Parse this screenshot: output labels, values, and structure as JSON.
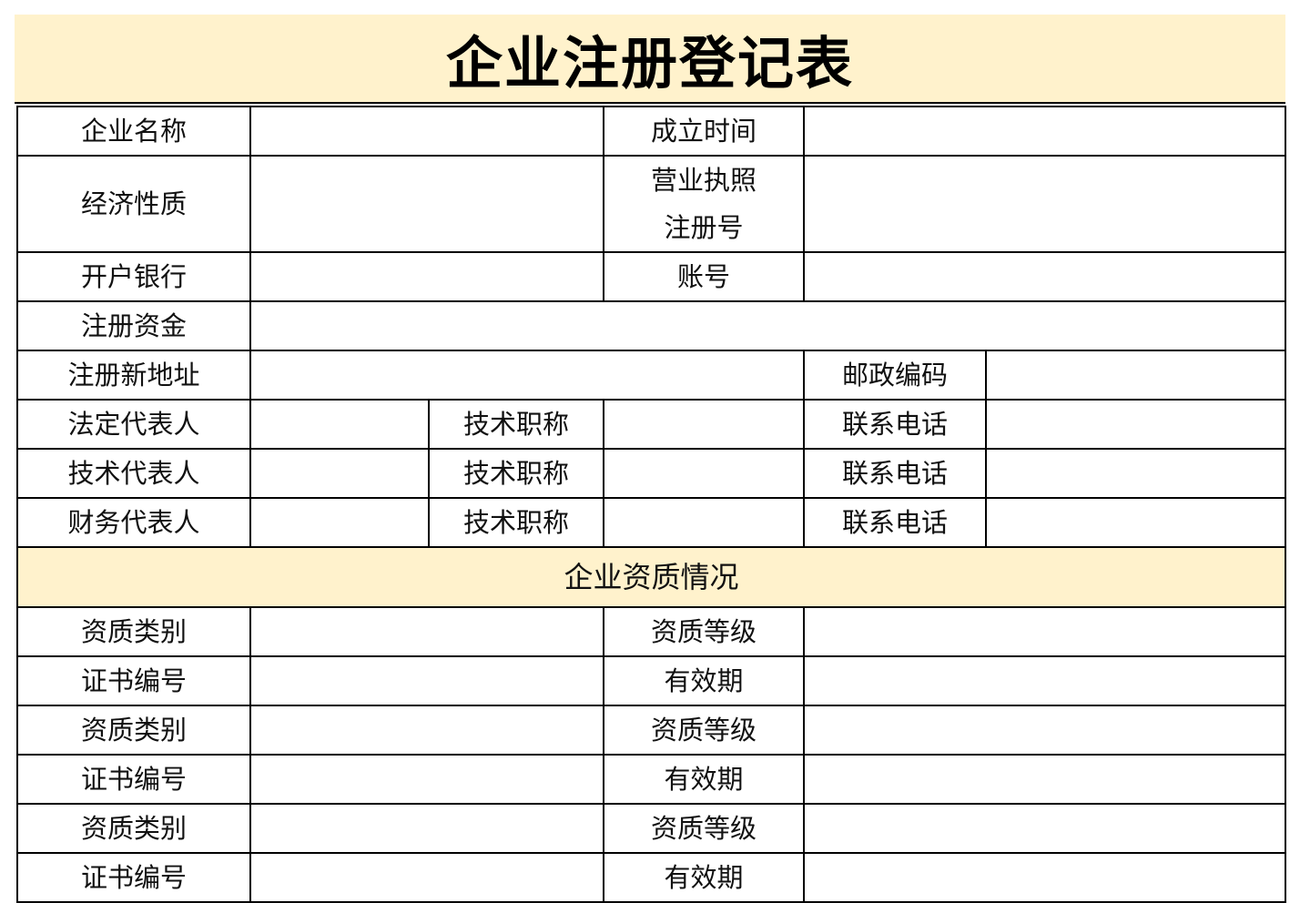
{
  "title": "企业注册登记表",
  "rows_basic": {
    "company_name": "企业名称",
    "established": "成立时间",
    "economic_nature": "经济性质",
    "license_line1": "营业执照",
    "license_line2": "注册号",
    "bank": "开户银行",
    "account": "账号",
    "capital": "注册资金",
    "address": "注册新地址",
    "postcode": "邮政编码"
  },
  "people": [
    {
      "role": "法定代表人",
      "title": "技术职称",
      "phone": "联系电话"
    },
    {
      "role": "技术代表人",
      "title": "技术职称",
      "phone": "联系电话"
    },
    {
      "role": "财务代表人",
      "title": "技术职称",
      "phone": "联系电话"
    }
  ],
  "section_title": "企业资质情况",
  "qualifications": [
    {
      "left": "资质类别",
      "right": "资质等级"
    },
    {
      "left": "证书编号",
      "right": "有效期"
    },
    {
      "left": "资质类别",
      "right": "资质等级"
    },
    {
      "left": "证书编号",
      "right": "有效期"
    },
    {
      "left": "资质类别",
      "right": "资质等级"
    },
    {
      "left": "证书编号",
      "right": "有效期"
    }
  ],
  "colors": {
    "header_bg": "#FFF2CC",
    "border": "#000000"
  }
}
